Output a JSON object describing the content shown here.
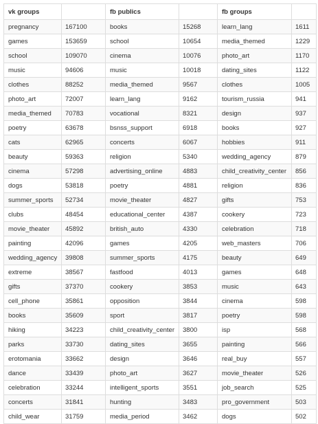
{
  "table": {
    "headers": [
      "vk groups",
      "",
      "fb publics",
      "",
      "fb groups",
      ""
    ],
    "rows": [
      [
        "pregnancy",
        "167100",
        "books",
        "15268",
        "learn_lang",
        "1611"
      ],
      [
        "games",
        "153659",
        "school",
        "10654",
        "media_themed",
        "1229"
      ],
      [
        "school",
        "109070",
        "cinema",
        "10076",
        "photo_art",
        "1170"
      ],
      [
        "music",
        "94606",
        "music",
        "10018",
        "dating_sites",
        "1122"
      ],
      [
        "clothes",
        "88252",
        "media_themed",
        "9567",
        "clothes",
        "1005"
      ],
      [
        "photo_art",
        "72007",
        "learn_lang",
        "9162",
        "tourism_russia",
        "941"
      ],
      [
        "media_themed",
        "70783",
        "vocational",
        "8321",
        "design",
        "937"
      ],
      [
        "poetry",
        "63678",
        "bsnss_support",
        "6918",
        "books",
        "927"
      ],
      [
        "cats",
        "62965",
        "concerts",
        "6067",
        "hobbies",
        "911"
      ],
      [
        "beauty",
        "59363",
        "religion",
        "5340",
        "wedding_agency",
        "879"
      ],
      [
        "cinema",
        "57298",
        "advertising_online",
        "4883",
        "child_creativity_center",
        "856"
      ],
      [
        "dogs",
        "53818",
        "poetry",
        "4881",
        "religion",
        "836"
      ],
      [
        "summer_sports",
        "52734",
        "movie_theater",
        "4827",
        "gifts",
        "753"
      ],
      [
        "clubs",
        "48454",
        "educational_center",
        "4387",
        "cookery",
        "723"
      ],
      [
        "movie_theater",
        "45892",
        "british_auto",
        "4330",
        "celebration",
        "718"
      ],
      [
        "painting",
        "42096",
        "games",
        "4205",
        "web_masters",
        "706"
      ],
      [
        "wedding_agency",
        "39808",
        "summer_sports",
        "4175",
        "beauty",
        "649"
      ],
      [
        "extreme",
        "38567",
        "fastfood",
        "4013",
        "games",
        "648"
      ],
      [
        "gifts",
        "37370",
        "cookery",
        "3853",
        "music",
        "643"
      ],
      [
        "cell_phone",
        "35861",
        "opposition",
        "3844",
        "cinema",
        "598"
      ],
      [
        "books",
        "35609",
        "sport",
        "3817",
        "poetry",
        "598"
      ],
      [
        "hiking",
        "34223",
        "child_creativity_center",
        "3800",
        "isp",
        "568"
      ],
      [
        "parks",
        "33730",
        "dating_sites",
        "3655",
        "painting",
        "566"
      ],
      [
        "erotomania",
        "33662",
        "design",
        "3646",
        "real_buy",
        "557"
      ],
      [
        "dance",
        "33439",
        "photo_art",
        "3627",
        "movie_theater",
        "526"
      ],
      [
        "celebration",
        "33244",
        "intelligent_sports",
        "3551",
        "job_search",
        "525"
      ],
      [
        "concerts",
        "31841",
        "hunting",
        "3483",
        "pro_government",
        "503"
      ],
      [
        "child_wear",
        "31759",
        "media_period",
        "3462",
        "dogs",
        "502"
      ]
    ]
  }
}
